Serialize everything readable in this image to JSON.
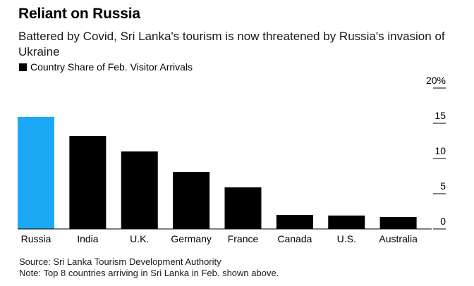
{
  "header": {
    "title": "Reliant on Russia",
    "subtitle": "Battered by Covid, Sri Lanka's tourism is now threatened by Russia's invasion of Ukraine"
  },
  "legend": {
    "label": "Country Share of Feb. Visitor Arrivals",
    "color": "#000000"
  },
  "chart_data": {
    "type": "bar",
    "categories": [
      "Russia",
      "India",
      "U.K.",
      "Germany",
      "France",
      "Canada",
      "U.S.",
      "Australia"
    ],
    "series": [
      {
        "name": "Country Share of Feb. Visitor Arrivals",
        "values": [
          15.9,
          13.2,
          11.0,
          8.1,
          5.9,
          2.0,
          1.9,
          1.7
        ]
      }
    ],
    "ylim": [
      0,
      20
    ],
    "yticks": [
      0,
      5,
      10,
      15,
      20
    ],
    "ytick_labels": [
      "0",
      "5",
      "10",
      "15",
      "20%"
    ],
    "y_axis_position": "right",
    "grid": false,
    "legend_position": "top-left",
    "highlight_category": "Russia",
    "colors": {
      "bar": "#000000",
      "highlight": "#1ba9f5",
      "tick": "#000000"
    }
  },
  "footer": {
    "source": "Source: Sri Lanka Tourism Development Authority",
    "note": "Note: Top 8 countries arriving in Sri Lanka in Feb. shown above."
  }
}
